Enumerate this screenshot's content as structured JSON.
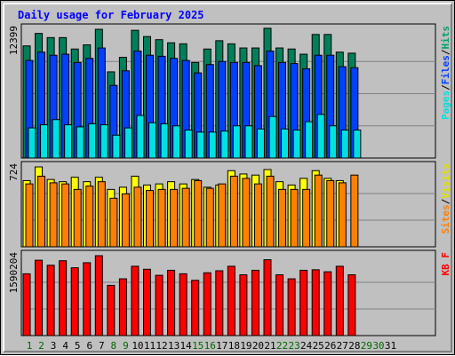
{
  "chart_data": {
    "type": "bar",
    "title": "Daily usage for February 2025",
    "title_color": "#0000ff",
    "days": [
      "1",
      "2",
      "3",
      "4",
      "5",
      "6",
      "7",
      "8",
      "9",
      "10",
      "11",
      "12",
      "13",
      "14",
      "15",
      "16",
      "17",
      "18",
      "19",
      "20",
      "21",
      "22",
      "23",
      "24",
      "25",
      "26",
      "27",
      "28",
      "29",
      "30",
      "31"
    ],
    "weekend_days": [
      "1",
      "2",
      "8",
      "9",
      "15",
      "16",
      "22",
      "23",
      "29",
      "30"
    ],
    "weekend_color": "#006600",
    "weekday_color": "#000000",
    "panels": [
      {
        "max_label": "12399",
        "max_value": 12399,
        "legend": [
          {
            "text": "Pages",
            "color": "#00e0e0"
          },
          {
            "text": "Files",
            "color": "#0040ff"
          },
          {
            "text": "Hits",
            "color": "#00a070"
          }
        ],
        "series": [
          {
            "name": "Hits",
            "color": "#00805a",
            "values": [
              10800,
              12000,
              11600,
              11600,
              10500,
              10900,
              12400,
              8300,
              9700,
              12300,
              11700,
              11400,
              11100,
              11000,
              9200,
              10500,
              11300,
              11000,
              10600,
              10600,
              12500,
              10600,
              10500,
              10000,
              11900,
              11900,
              10200,
              10100,
              null,
              null,
              null
            ]
          },
          {
            "name": "Files",
            "color": "#0040ff",
            "values": [
              9400,
              10200,
              9900,
              10000,
              9200,
              9600,
              10600,
              7000,
              8400,
              10300,
              9900,
              9800,
              9600,
              9400,
              8200,
              9000,
              9300,
              9200,
              9200,
              8900,
              10300,
              9200,
              9100,
              8600,
              9900,
              9900,
              8800,
              8700,
              null,
              null,
              null
            ]
          },
          {
            "name": "Pages",
            "color": "#00e0e0",
            "values": [
              2900,
              3200,
              3700,
              3200,
              3000,
              3300,
              3200,
              2200,
              2900,
              4100,
              3400,
              3300,
              3100,
              2700,
              2500,
              2500,
              2600,
              3100,
              3100,
              2800,
              4000,
              2800,
              2700,
              3500,
              4200,
              3100,
              2700,
              2700,
              null,
              null,
              null
            ]
          }
        ]
      },
      {
        "max_label": "724",
        "max_value": 724,
        "legend": [
          {
            "text": "Sites",
            "color": "#ff8000"
          },
          {
            "text": "Visits",
            "color": "#e0e000"
          }
        ],
        "series": [
          {
            "name": "Visits",
            "color": "#ffff00",
            "values": [
              600,
              724,
              610,
              590,
              630,
              590,
              630,
              520,
              540,
              640,
              560,
              570,
              590,
              570,
              610,
              540,
              560,
              690,
              660,
              650,
              700,
              590,
              560,
              620,
              690,
              620,
              600,
              null,
              null,
              null,
              null
            ]
          },
          {
            "name": "Sites",
            "color": "#ff8000",
            "values": [
              570,
              640,
              580,
              570,
              520,
              550,
              590,
              440,
              480,
              540,
              510,
              520,
              520,
              530,
              600,
              530,
              570,
              640,
              620,
              570,
              640,
              520,
              520,
              520,
              650,
              600,
              580,
              650,
              null,
              null,
              null
            ]
          }
        ]
      },
      {
        "max_label": "1590204",
        "max_value": 1590204,
        "legend": [
          {
            "text": "KB F",
            "color": "#ff0000"
          }
        ],
        "series": [
          {
            "name": "KB F",
            "color": "#ff0000",
            "values": [
              1230000,
              1500000,
              1400000,
              1490000,
              1350000,
              1450000,
              1590204,
              1000000,
              1130000,
              1380000,
              1320000,
              1200000,
              1300000,
              1230000,
              1100000,
              1250000,
              1290000,
              1380000,
              1210000,
              1300000,
              1510000,
              1210000,
              1130000,
              1300000,
              1310000,
              1270000,
              1380000,
              1210000,
              null,
              null,
              null
            ]
          }
        ]
      }
    ]
  }
}
